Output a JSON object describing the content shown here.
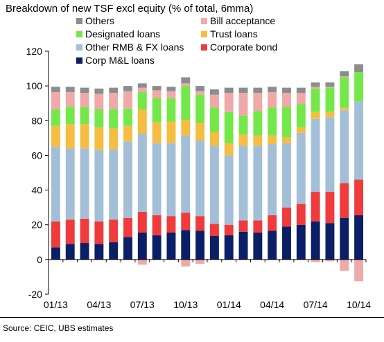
{
  "chart_data": {
    "type": "bar",
    "stacked": true,
    "title": "Breakdown of new TSF excl equity (% of total, 6mma)",
    "xlabel": "",
    "ylabel": "",
    "ylim": [
      -20,
      120
    ],
    "yticks": [
      -20,
      0,
      20,
      40,
      60,
      80,
      100,
      120
    ],
    "categories": [
      "01/13",
      "02/13",
      "03/13",
      "04/13",
      "05/13",
      "06/13",
      "07/13",
      "08/13",
      "09/13",
      "10/13",
      "11/13",
      "12/13",
      "01/14",
      "02/14",
      "03/14",
      "04/14",
      "05/14",
      "06/14",
      "07/14",
      "08/14",
      "09/14",
      "10/14"
    ],
    "xtick_labels": [
      "01/13",
      "04/13",
      "07/13",
      "10/13",
      "01/14",
      "04/14",
      "07/14",
      "10/14"
    ],
    "legend": {
      "placement": "top-left",
      "rows": [
        [
          "Others",
          "Bill acceptance"
        ],
        [
          "Designated loans",
          "Trust loans"
        ],
        [
          "Other RMB & FX loans",
          "Corporate bond"
        ],
        [
          "Corp M&L loans"
        ]
      ]
    },
    "series": [
      {
        "name": "Corp M&L loans",
        "color": "#0a1f66",
        "values": [
          7,
          9,
          9.5,
          9,
          10,
          13,
          15.5,
          14,
          15.5,
          17,
          16.5,
          13.5,
          14,
          16,
          15.5,
          16.5,
          19,
          20,
          22,
          21,
          24,
          25.5
        ]
      },
      {
        "name": "Corporate bond",
        "color": "#ef3b3b",
        "values": [
          15,
          14,
          14,
          13,
          13,
          11,
          12,
          11.5,
          9.5,
          10,
          8.5,
          7,
          6,
          6.5,
          7,
          9,
          11,
          12,
          17,
          18,
          20,
          20.5
        ]
      },
      {
        "name": "Other RMB & FX loans",
        "color": "#a3bfd8",
        "values": [
          43,
          41,
          40.5,
          41,
          40.5,
          44,
          45,
          41.5,
          42,
          44.5,
          43.5,
          45,
          40,
          43,
          43,
          41,
          37,
          41,
          42,
          43,
          42,
          45
        ]
      },
      {
        "name": "Trust loans",
        "color": "#f5bd41",
        "values": [
          12,
          14,
          14,
          13,
          12,
          9,
          14,
          12,
          12.5,
          9,
          10,
          8,
          7,
          6.5,
          6,
          5,
          3.5,
          3,
          4,
          3,
          1.5,
          0
        ]
      },
      {
        "name": "Designated loans",
        "color": "#74e84a",
        "values": [
          9.5,
          10,
          10,
          10.5,
          11,
          10,
          10,
          14,
          13.5,
          19.5,
          16.5,
          14,
          18,
          11,
          14,
          16,
          17.5,
          13.5,
          13.5,
          14,
          17.5,
          17
        ]
      },
      {
        "name": "Bill acceptance",
        "color": "#efa9a9",
        "values": [
          10,
          8.5,
          8,
          9,
          9.5,
          10,
          2.5,
          4.5,
          4,
          1.5,
          2,
          7.5,
          11,
          13,
          10.5,
          9,
          8,
          6.5,
          1,
          0.5,
          0.5,
          0
        ]
      },
      {
        "name": "Others",
        "color": "#8c8c8c",
        "values": [
          3,
          3,
          3,
          3,
          3,
          3,
          2.5,
          2.5,
          2.5,
          3.5,
          3,
          3,
          3,
          3,
          3,
          3,
          3,
          3,
          2.5,
          2.5,
          3,
          4.5
        ]
      }
    ],
    "negative_series": [
      {
        "name": "Bill acceptance",
        "color": "#efa9a9",
        "values": [
          0,
          0,
          0,
          0,
          0,
          0,
          -3,
          0,
          0,
          -4,
          -2.5,
          0,
          0,
          0,
          0,
          0,
          0,
          0,
          -1.5,
          -1,
          -6.5,
          -12.5
        ]
      }
    ],
    "grid": false
  },
  "source": "Source:   CEIC, UBS estimates"
}
